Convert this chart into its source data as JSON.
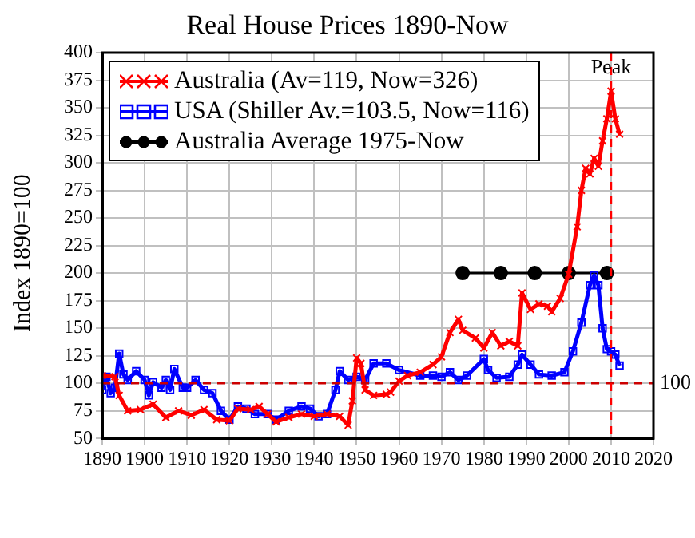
{
  "chart_data": {
    "type": "line",
    "title": "Real House Prices 1890-Now",
    "ylabel": "Index 1890=100",
    "xlim": [
      1890,
      2020
    ],
    "xticks": [
      1890,
      1900,
      1910,
      1920,
      1930,
      1940,
      1950,
      1960,
      1970,
      1980,
      1990,
      2000,
      2010,
      2020
    ],
    "ylim": [
      50,
      400
    ],
    "yticks": [
      50,
      75,
      100,
      125,
      150,
      175,
      200,
      225,
      250,
      275,
      300,
      325,
      350,
      375,
      400
    ],
    "grid": true,
    "legend": "top left",
    "line_style": "solid",
    "series": [
      {
        "name": "Australia (Av=119, Now=326)",
        "color": "#ff0000",
        "marker": "cross",
        "x": [
          1890,
          1893,
          1894,
          1896,
          1899,
          1902,
          1905,
          1908,
          1911,
          1914,
          1917,
          1920,
          1922,
          1925,
          1927,
          1929,
          1931,
          1934,
          1937,
          1940,
          1943,
          1946,
          1948,
          1949,
          1950,
          1951,
          1952,
          1954,
          1957,
          1958,
          1960,
          1962,
          1965,
          1968,
          1970,
          1972,
          1974,
          1975,
          1978,
          1980,
          1982,
          1984,
          1986,
          1988,
          1989,
          1991,
          1993,
          1995,
          1996,
          1998,
          2000,
          2002,
          2003,
          2004,
          2005,
          2006,
          2007,
          2008,
          2009,
          2010,
          2011,
          2012
        ],
        "values": [
          107,
          106,
          89,
          75,
          76,
          81,
          69,
          75,
          71,
          76,
          67,
          66,
          77,
          76,
          79,
          72,
          65,
          69,
          72,
          70,
          72,
          70,
          62,
          84,
          123,
          118,
          94,
          89,
          90,
          92,
          102,
          107,
          110,
          117,
          124,
          146,
          158,
          148,
          141,
          132,
          146,
          134,
          138,
          134,
          182,
          167,
          172,
          170,
          165,
          177,
          199,
          242,
          275,
          295,
          290,
          304,
          297,
          320,
          340,
          365,
          340,
          326
        ]
      },
      {
        "name": "USA (Shiller Av.=103.5, Now=116)",
        "color": "#0000ff",
        "marker": "square",
        "x": [
          1890,
          1891,
          1892,
          1893,
          1894,
          1895,
          1896,
          1898,
          1900,
          1901,
          1902,
          1904,
          1905,
          1906,
          1907,
          1909,
          1910,
          1912,
          1914,
          1916,
          1918,
          1920,
          1922,
          1924,
          1926,
          1929,
          1931,
          1934,
          1937,
          1939,
          1941,
          1943,
          1945,
          1946,
          1948,
          1950,
          1952,
          1954,
          1957,
          1960,
          1965,
          1968,
          1970,
          1972,
          1974,
          1976,
          1980,
          1981,
          1983,
          1986,
          1988,
          1989,
          1991,
          1993,
          1996,
          1999,
          2001,
          2003,
          2005,
          2006,
          2007,
          2008,
          2009,
          2010,
          2011,
          2012
        ],
        "values": [
          94,
          106,
          91,
          96,
          127,
          108,
          103,
          111,
          103,
          89,
          101,
          96,
          103,
          94,
          113,
          96,
          96,
          103,
          94,
          91,
          75,
          67,
          79,
          77,
          72,
          72,
          67,
          75,
          79,
          77,
          70,
          72,
          94,
          111,
          103,
          106,
          103,
          118,
          118,
          112,
          107,
          107,
          106,
          110,
          103,
          107,
          122,
          112,
          105,
          106,
          117,
          126,
          117,
          108,
          107,
          110,
          129,
          155,
          189,
          198,
          189,
          150,
          131,
          129,
          126,
          116
        ]
      },
      {
        "name": "Australia Average 1975-Now",
        "color": "#000000",
        "marker": "circle",
        "x": [
          1975,
          1984,
          1992,
          2000,
          2009
        ],
        "values": [
          200,
          200,
          200,
          200,
          200
        ]
      }
    ],
    "ref_lines": [
      {
        "axis": "y",
        "value": 100,
        "label": "100",
        "color": "#cc0000",
        "line_style": "dashed"
      },
      {
        "axis": "x",
        "value": 2010,
        "label": "Peak",
        "color": "#ff0000",
        "line_style": "dashed"
      }
    ]
  }
}
